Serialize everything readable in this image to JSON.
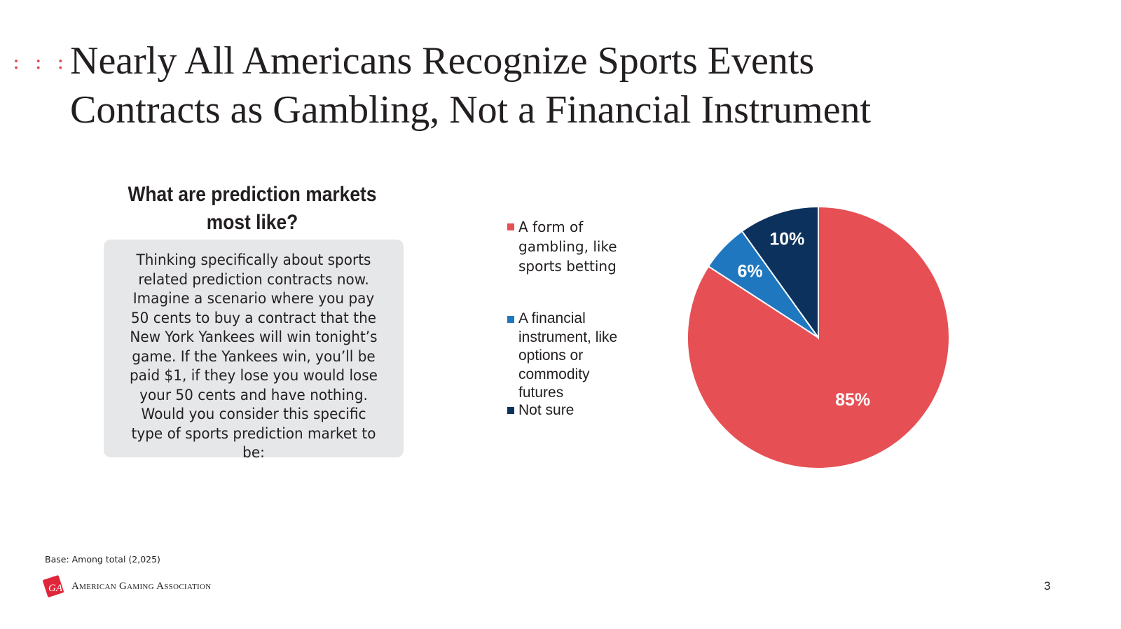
{
  "slide": {
    "title_line1": "Nearly All Americans Recognize Sports Events",
    "title_line2": "Contracts as Gambling, Not a Financial Instrument",
    "dots": ": : :",
    "question": "What are prediction markets most like?",
    "question_body": "Thinking specifically about sports related prediction contracts now. Imagine a scenario where you pay 50 cents to buy a contract that the New York Yankees will win tonight’s game. If the Yankees win, you’ll be paid $1, if they lose you would lose your 50 cents and have nothing. Would you consider this specific type of sports prediction market to be:",
    "base_note": "Base: Among total (2,025)",
    "org_name": "American Gaming Association",
    "org_mark_icon": "aga-logo-icon",
    "page_number": "3"
  },
  "chart_data": {
    "type": "pie",
    "series": [
      {
        "name": "A form of gambling, like sports betting",
        "value": 85,
        "label": "85%",
        "color": "#e65055"
      },
      {
        "name": "A financial instrument, like options or commodity futures",
        "value": 6,
        "label": "6%",
        "color": "#1f78bf"
      },
      {
        "name": "Not sure",
        "value": 10,
        "label": "10%",
        "color": "#0c315c"
      }
    ],
    "legend_position": "left",
    "start_angle": "12 o'clock",
    "direction": "clockwise"
  }
}
